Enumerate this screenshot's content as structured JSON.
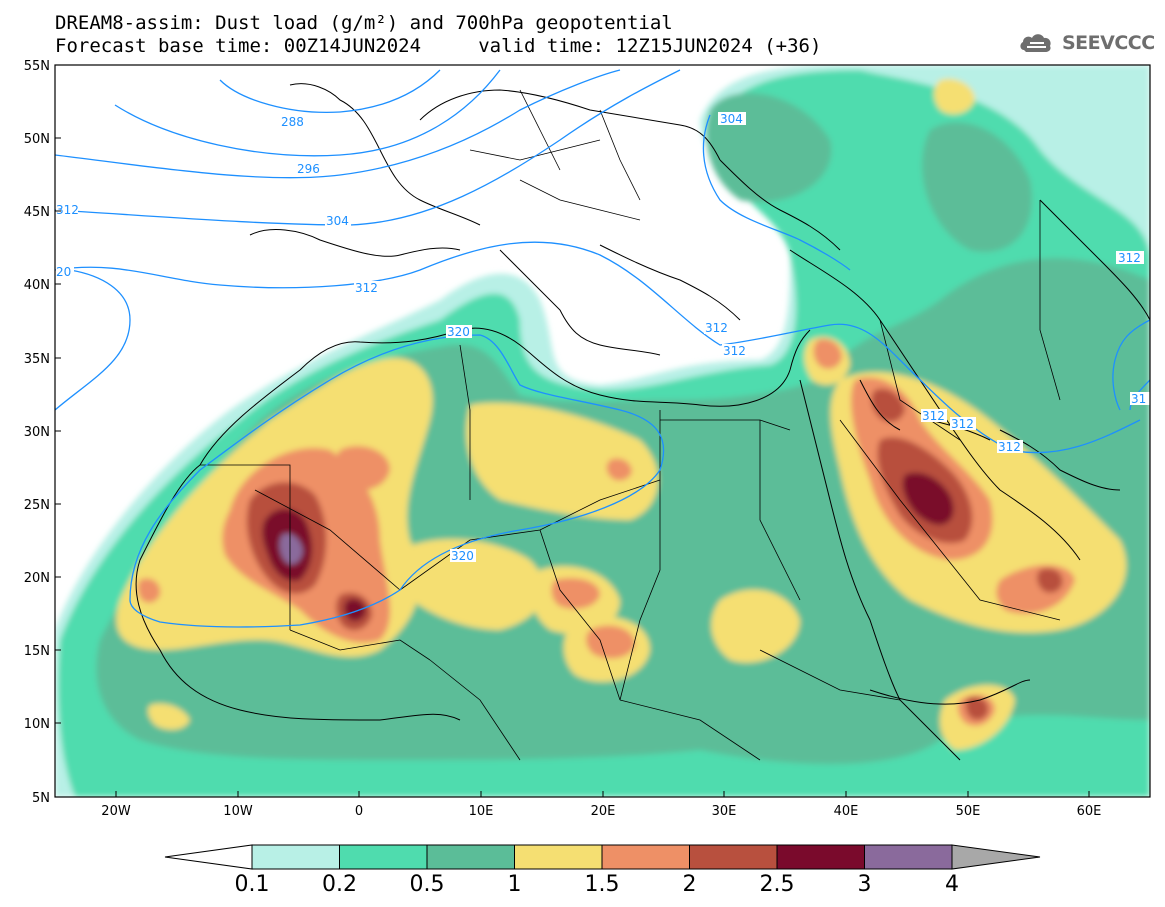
{
  "title": {
    "line1": "DREAM8-assim: Dust load (g/m²) and 700hPa geopotential",
    "line2": "Forecast base time: 00Z14JUN2024     valid time: 12Z15JUN2024 (+36)"
  },
  "logo": {
    "text": "SEEVCCC",
    "icon": "cloud-icon"
  },
  "map": {
    "lon_range": [
      -25,
      65
    ],
    "lat_range": [
      5,
      55
    ],
    "lon_ticks": [
      "20W",
      "10W",
      "0",
      "10E",
      "20E",
      "30E",
      "40E",
      "50E",
      "60E"
    ],
    "lat_ticks": [
      "55N",
      "50N",
      "45N",
      "40N",
      "35N",
      "30N",
      "25N",
      "20N",
      "15N",
      "10N",
      "5N"
    ],
    "contour_labels": [
      "288",
      "296",
      "304",
      "312",
      "20",
      "312",
      "320",
      "320",
      "304",
      "312",
      "312",
      "312",
      "312",
      "312",
      "31"
    ]
  },
  "colorbar": {
    "labels": [
      "0.1",
      "0.2",
      "0.5",
      "1",
      "1.5",
      "2",
      "2.5",
      "3",
      "4"
    ],
    "colors": [
      "#b8f0e6",
      "#4fdcae",
      "#5bbd98",
      "#f5df72",
      "#ee9066",
      "#b8503e",
      "#7a0a2c",
      "#8a6a9c"
    ],
    "under_color": "#ffffff",
    "over_color": "#a8a8a8"
  }
}
